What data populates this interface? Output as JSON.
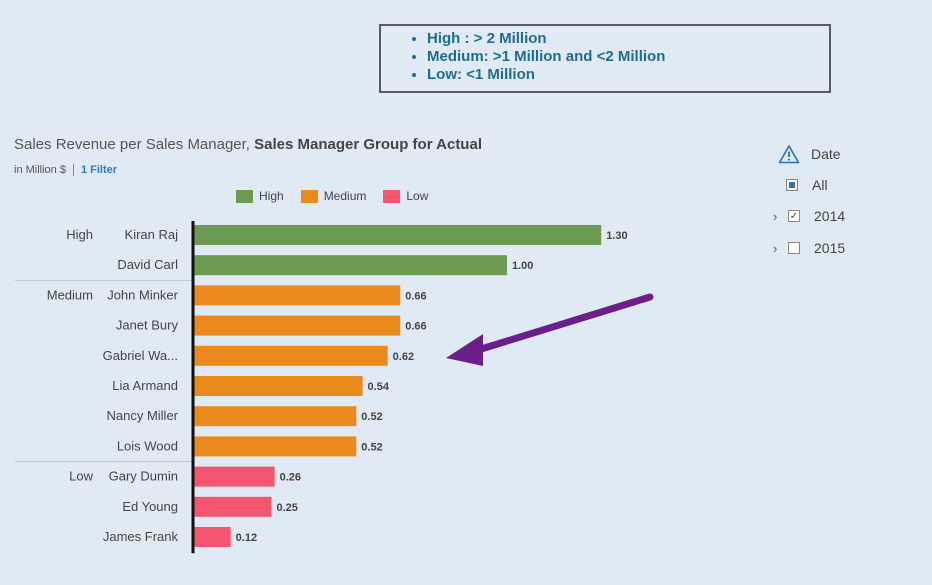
{
  "legend_box": {
    "items": [
      "High : > 2 Million",
      "Medium: >1 Million and <2 Million",
      "Low: <1 Million"
    ]
  },
  "chart": {
    "title_prefix": "Sales Revenue per Sales Manager, ",
    "title_bold": "Sales Manager Group for Actual",
    "unit": "in Million $",
    "filter_link": "1 Filter"
  },
  "colors": {
    "High": "#6d9a51",
    "Medium": "#ea8a1c",
    "Low": "#f3566e"
  },
  "chart_data": {
    "type": "bar",
    "orientation": "horizontal",
    "title": "Sales Revenue per Sales Manager, Sales Manager Group for Actual",
    "unit": "in Million $",
    "legend": [
      "High",
      "Medium",
      "Low"
    ],
    "groups": [
      {
        "name": "High",
        "rows": [
          {
            "label": "Kiran Raj",
            "value": 1.3,
            "value_label": "1.30"
          },
          {
            "label": "David Carl",
            "value": 1.0,
            "value_label": "1.00"
          }
        ]
      },
      {
        "name": "Medium",
        "rows": [
          {
            "label": "John Minker",
            "value": 0.66,
            "value_label": "0.66"
          },
          {
            "label": "Janet Bury",
            "value": 0.66,
            "value_label": "0.66"
          },
          {
            "label": "Gabriel Wa...",
            "value": 0.62,
            "value_label": "0.62"
          },
          {
            "label": "Lia Armand",
            "value": 0.54,
            "value_label": "0.54"
          },
          {
            "label": "Nancy Miller",
            "value": 0.52,
            "value_label": "0.52"
          },
          {
            "label": "Lois Wood",
            "value": 0.52,
            "value_label": "0.52"
          }
        ]
      },
      {
        "name": "Low",
        "rows": [
          {
            "label": "Gary Dumin",
            "value": 0.26,
            "value_label": "0.26"
          },
          {
            "label": "Ed Young",
            "value": 0.25,
            "value_label": "0.25"
          },
          {
            "label": "James Frank",
            "value": 0.12,
            "value_label": "0.12"
          }
        ]
      }
    ]
  },
  "filter_panel": {
    "title": "Date",
    "icon": "warning-triangle-icon",
    "items": [
      {
        "label": "All",
        "state": "partial",
        "expandable": false
      },
      {
        "label": "2014",
        "state": "checked",
        "expandable": true
      },
      {
        "label": "2015",
        "state": "unchecked",
        "expandable": true
      }
    ]
  }
}
